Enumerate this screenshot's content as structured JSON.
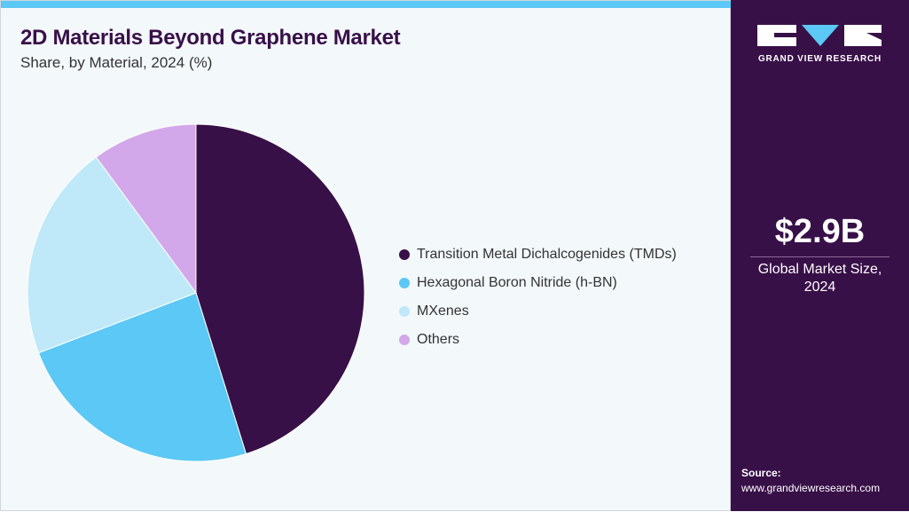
{
  "title": "2D Materials Beyond Graphene Market",
  "subtitle": "Share, by Material, 2024 (%)",
  "chart_data": {
    "type": "pie",
    "title": "2D Materials Beyond Graphene Market",
    "subtitle": "Share, by Material, 2024 (%)",
    "categories": [
      "Transition Metal Dichalcogenides (TMDs)",
      "Hexagonal Boron Nitride (h-BN)",
      "MXenes",
      "Others"
    ],
    "values": [
      45.2,
      24.0,
      20.7,
      10.1
    ],
    "colors": [
      "#381048",
      "#5bc8f5",
      "#bfe9f8",
      "#d3a8ea"
    ],
    "legend_position": "right"
  },
  "sidebar": {
    "logo_text": "GRAND VIEW RESEARCH",
    "market_size": "$2.9B",
    "market_caption_line1": "Global Market Size,",
    "market_caption_line2": "2024",
    "source_label": "Source:",
    "source_url": "www.grandviewresearch.com"
  }
}
